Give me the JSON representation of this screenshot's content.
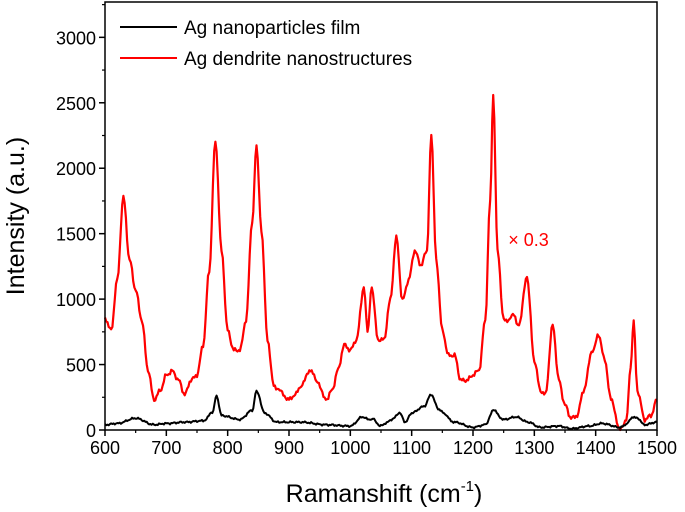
{
  "chart_data": {
    "type": "line",
    "xlabel": "Ramanshift (cm",
    "xlabel_sup": "-1",
    "xlabel_close": ")",
    "ylabel": "Intensity (a.u.)",
    "xlim": [
      600,
      1500
    ],
    "ylim": [
      0,
      3270
    ],
    "xticks": [
      600,
      700,
      800,
      900,
      1000,
      1100,
      1200,
      1300,
      1400,
      1500
    ],
    "yticks": [
      0,
      500,
      1000,
      1500,
      2000,
      2500,
      3000
    ],
    "grid": false,
    "legend_placement": "top-left",
    "annotation": {
      "text": "× 0.3",
      "x": 1290,
      "y": 1450,
      "color": "#ff0000"
    },
    "series": [
      {
        "name": "Ag nanoparticles film",
        "color": "#000000",
        "x": [
          600,
          620,
          650,
          680,
          700,
          730,
          760,
          775,
          782,
          790,
          820,
          840,
          847,
          860,
          880,
          920,
          960,
          1000,
          1020,
          1030,
          1037,
          1048,
          1065,
          1080,
          1090,
          1100,
          1120,
          1132,
          1145,
          1170,
          1200,
          1220,
          1233,
          1250,
          1270,
          1290,
          1310,
          1340,
          1360,
          1390,
          1410,
          1440,
          1465,
          1480,
          1500
        ],
        "y": [
          40,
          50,
          90,
          40,
          50,
          60,
          70,
          130,
          260,
          110,
          80,
          150,
          300,
          130,
          60,
          60,
          40,
          30,
          100,
          80,
          90,
          30,
          70,
          130,
          60,
          130,
          180,
          270,
          150,
          60,
          20,
          40,
          150,
          80,
          100,
          60,
          20,
          30,
          10,
          30,
          50,
          20,
          100,
          40,
          60
        ]
      },
      {
        "name": "Ag dendrite nanostructures",
        "color": "#ff0000",
        "x": [
          600,
          610,
          620,
          630,
          640,
          650,
          660,
          670,
          680,
          690,
          700,
          710,
          720,
          730,
          740,
          750,
          760,
          770,
          780,
          790,
          800,
          810,
          820,
          830,
          840,
          847,
          855,
          865,
          875,
          885,
          900,
          910,
          920,
          935,
          945,
          960,
          970,
          980,
          990,
          1000,
          1010,
          1022,
          1028,
          1035,
          1045,
          1055,
          1065,
          1075,
          1085,
          1095,
          1105,
          1115,
          1125,
          1132,
          1140,
          1150,
          1160,
          1170,
          1180,
          1190,
          1200,
          1210,
          1220,
          1228,
          1233,
          1240,
          1250,
          1260,
          1265,
          1275,
          1288,
          1300,
          1310,
          1318,
          1330,
          1340,
          1350,
          1360,
          1370,
          1380,
          1395,
          1405,
          1415,
          1425,
          1440,
          1450,
          1457,
          1462,
          1468,
          1480,
          1490,
          1500
        ],
        "y": [
          855,
          760,
          1145,
          1780,
          1300,
          1070,
          840,
          460,
          230,
          300,
          420,
          450,
          380,
          270,
          380,
          420,
          650,
          1220,
          2210,
          1370,
          760,
          610,
          610,
          840,
          1600,
          2170,
          1530,
          690,
          340,
          300,
          230,
          270,
          340,
          460,
          380,
          230,
          300,
          460,
          650,
          610,
          690,
          1090,
          760,
          1090,
          690,
          690,
          990,
          1470,
          990,
          1145,
          1370,
          1260,
          1370,
          2270,
          1300,
          760,
          570,
          570,
          380,
          380,
          420,
          460,
          840,
          1750,
          2550,
          1370,
          840,
          840,
          880,
          800,
          1170,
          530,
          300,
          270,
          800,
          380,
          190,
          90,
          110,
          300,
          610,
          725,
          530,
          230,
          0,
          80,
          460,
          825,
          300,
          80,
          110,
          230
        ]
      }
    ]
  }
}
